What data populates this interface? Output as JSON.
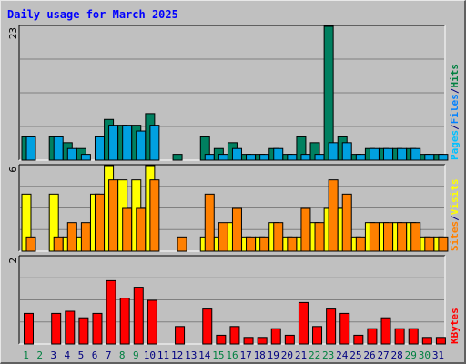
{
  "chart_data": {
    "type": "bar",
    "title": "Daily usage for March 2025",
    "categories": [
      "1",
      "2",
      "3",
      "4",
      "5",
      "6",
      "7",
      "8",
      "9",
      "10",
      "11",
      "12",
      "13",
      "14",
      "15",
      "16",
      "17",
      "18",
      "19",
      "20",
      "21",
      "22",
      "23",
      "24",
      "25",
      "26",
      "27",
      "28",
      "29",
      "30",
      "31"
    ],
    "weekend_days": [
      "1",
      "2",
      "8",
      "9",
      "15",
      "16",
      "22",
      "23",
      "29",
      "30"
    ],
    "panels": [
      {
        "name": "hits-files-pages",
        "ymax": 23,
        "ymax_label": "23",
        "legend": [
          {
            "text": "Pages",
            "color": "#00c0ff"
          },
          {
            "text": "/",
            "color": "#000080"
          },
          {
            "text": "Files",
            "color": "#0080ff"
          },
          {
            "text": "/",
            "color": "#000080"
          },
          {
            "text": "Hits",
            "color": "#008040"
          }
        ],
        "series": [
          {
            "name": "Hits",
            "color": "#008060",
            "values": [
              4,
              0,
              4,
              3,
              2,
              0,
              7,
              6,
              6,
              8,
              0,
              1,
              0,
              4,
              2,
              3,
              1,
              1,
              2,
              1,
              4,
              3,
              23,
              4,
              1,
              2,
              2,
              2,
              2,
              1,
              1
            ]
          },
          {
            "name": "Files",
            "color": "#00a0e0",
            "values": [
              4,
              0,
              4,
              2,
              1,
              4,
              6,
              6,
              5,
              6,
              0,
              0,
              0,
              1,
              1,
              2,
              1,
              1,
              2,
              1,
              1,
              1,
              3,
              3,
              1,
              2,
              2,
              2,
              2,
              1,
              1
            ]
          }
        ]
      },
      {
        "name": "visits-sites",
        "ymax": 6,
        "ymax_label": "6",
        "legend": [
          {
            "text": "Sites",
            "color": "#ff8000"
          },
          {
            "text": "/",
            "color": "#000080"
          },
          {
            "text": "Visits",
            "color": "#ffff00"
          }
        ],
        "series": [
          {
            "name": "Visits",
            "color": "#ffff00",
            "values": [
              4,
              0,
              4,
              1,
              1,
              4,
              6,
              5,
              5,
              6,
              0,
              0,
              0,
              1,
              1,
              2,
              1,
              1,
              2,
              1,
              1,
              2,
              3,
              3,
              1,
              2,
              2,
              2,
              2,
              1,
              1
            ]
          },
          {
            "name": "Sites",
            "color": "#ff8000",
            "values": [
              1,
              0,
              1,
              2,
              2,
              4,
              5,
              3,
              3,
              5,
              0,
              1,
              0,
              4,
              2,
              3,
              1,
              1,
              2,
              1,
              3,
              2,
              5,
              4,
              1,
              2,
              2,
              2,
              2,
              1,
              1
            ]
          }
        ]
      },
      {
        "name": "kbytes",
        "ymax": 2,
        "ymax_label": "2",
        "legend": [
          {
            "text": "KBytes",
            "color": "#ff0000"
          }
        ],
        "series": [
          {
            "name": "KBytes",
            "color": "#ff0000",
            "values": [
              0.7,
              0,
              0.7,
              0.75,
              0.6,
              0.7,
              1.45,
              1.05,
              1.3,
              1.0,
              0,
              0.4,
              0,
              0.8,
              0.2,
              0.4,
              0.15,
              0.15,
              0.35,
              0.2,
              0.95,
              0.4,
              0.8,
              0.7,
              0.2,
              0.35,
              0.6,
              0.35,
              0.35,
              0.15,
              0.15
            ]
          }
        ]
      }
    ]
  },
  "colors": {
    "background": "#c0c0c0",
    "title": "#0000ff",
    "gridline": "#808080",
    "weekday_label": "#000080",
    "weekend_label": "#008040"
  }
}
